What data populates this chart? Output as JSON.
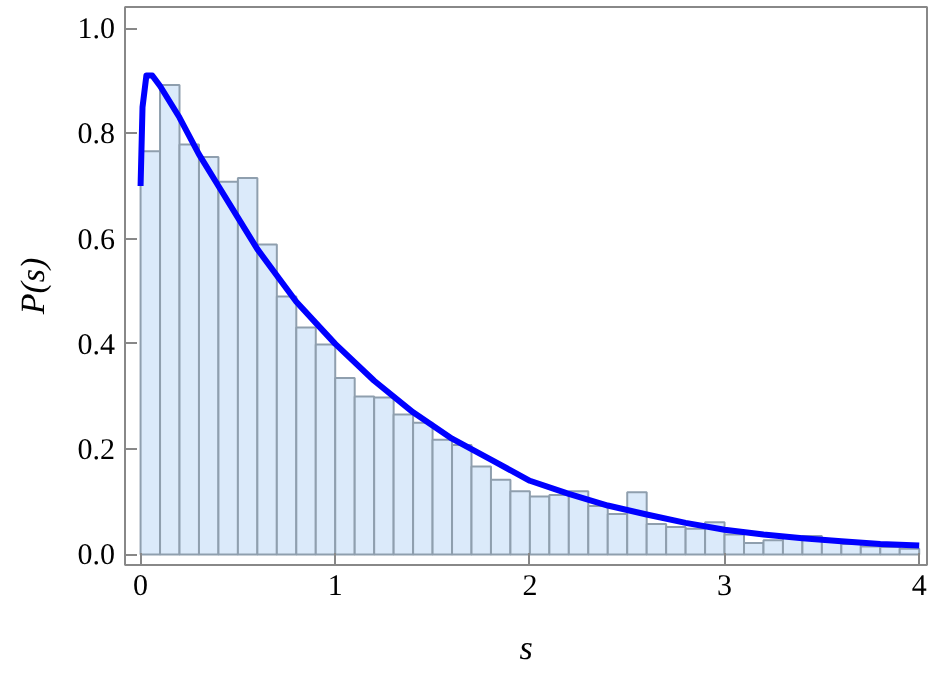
{
  "chart_data": {
    "type": "histogram",
    "xlabel": "s",
    "ylabel": "P(s)",
    "color": "#dbeafa",
    "bins": [
      0,
      0.1,
      0.2,
      0.3,
      0.4,
      0.5,
      0.6,
      0.7,
      0.8,
      0.9,
      1.0,
      1.1,
      1.2,
      1.3,
      1.4,
      1.5,
      1.6,
      1.7,
      1.8,
      1.9,
      2.0,
      2.1,
      2.2,
      2.3,
      2.4,
      2.5,
      2.6,
      2.7,
      2.8,
      2.9,
      3.0,
      3.1,
      3.2,
      3.3,
      3.4,
      3.5,
      3.6,
      3.7,
      3.8,
      3.9,
      4.0
    ],
    "values": [
      0.766,
      0.892,
      0.779,
      0.755,
      0.708,
      0.715,
      0.589,
      0.49,
      0.431,
      0.399,
      0.335,
      0.3,
      0.298,
      0.266,
      0.25,
      0.218,
      0.208,
      0.167,
      0.142,
      0.12,
      0.11,
      0.113,
      0.12,
      0.092,
      0.077,
      0.118,
      0.058,
      0.052,
      0.049,
      0.061,
      0.038,
      0.022,
      0.027,
      0.032,
      0.035,
      0.025,
      0.02,
      0.015,
      0.014,
      0.011
    ],
    "series": [
      {
        "type": "line",
        "color": "#0000ff",
        "x": [
          0,
          0.01,
          0.03,
          0.06,
          0.1,
          0.2,
          0.3,
          0.4,
          0.5,
          0.6,
          0.7,
          0.8,
          0.9,
          1.0,
          1.2,
          1.4,
          1.6,
          1.8,
          2.0,
          2.2,
          2.4,
          2.6,
          2.8,
          3.0,
          3.2,
          3.4,
          3.6,
          3.8,
          4.0
        ],
        "values": [
          0.7,
          0.85,
          0.91,
          0.91,
          0.89,
          0.83,
          0.76,
          0.7,
          0.64,
          0.58,
          0.53,
          0.48,
          0.44,
          0.4,
          0.33,
          0.27,
          0.22,
          0.18,
          0.14,
          0.115,
          0.093,
          0.076,
          0.06,
          0.047,
          0.038,
          0.031,
          0.025,
          0.02,
          0.017
        ]
      }
    ],
    "xlim": [
      -0.08,
      4.04
    ],
    "ylim": [
      -0.02,
      1.04
    ],
    "xticks": [
      0,
      1,
      2,
      3,
      4
    ],
    "yticks": [
      {
        "value": 0,
        "label": "0.0"
      },
      {
        "value": 0.2,
        "label": "0.2"
      },
      {
        "value": 0.4,
        "label": "0.4"
      },
      {
        "value": 0.6,
        "label": "0.6"
      },
      {
        "value": 0.8,
        "label": "0.8"
      },
      {
        "value": 1.0,
        "label": "1.0"
      }
    ],
    "grid": false
  }
}
